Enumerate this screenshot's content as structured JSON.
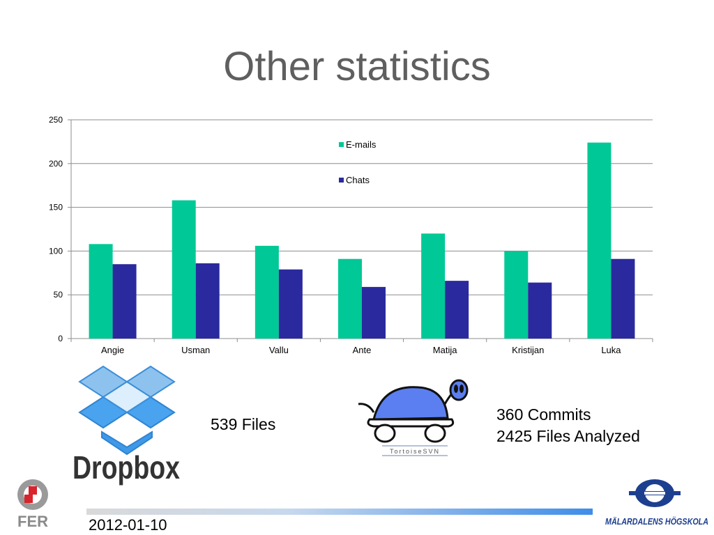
{
  "slide": {
    "title": "Other statistics",
    "date": "2012-01-10"
  },
  "chart_data": {
    "type": "bar",
    "categories": [
      "Angie",
      "Usman",
      "Vallu",
      "Ante",
      "Matija",
      "Kristijan",
      "Luka"
    ],
    "series": [
      {
        "name": "E-mails",
        "color": "#00c896",
        "values": [
          108,
          158,
          106,
          91,
          120,
          100,
          224
        ]
      },
      {
        "name": "Chats",
        "color": "#2a2a9e",
        "values": [
          85,
          86,
          79,
          59,
          66,
          64,
          91
        ]
      }
    ],
    "ylim": [
      0,
      250
    ],
    "yticks": [
      0,
      50,
      100,
      150,
      200,
      250
    ],
    "grid": true,
    "legend_position": "top-center"
  },
  "dropbox": {
    "logo_text": "Dropbox",
    "stat": "539 Files",
    "icon": "dropbox-box-icon"
  },
  "tortoisesvn": {
    "logo_text": "TortoiseSVN",
    "commits": "360 Commits",
    "files": "2425 Files Analyzed",
    "icon": "turtle-icon"
  },
  "logos": {
    "left": "FER",
    "right": "MÄLARDALENS HÖGSKOLA"
  }
}
